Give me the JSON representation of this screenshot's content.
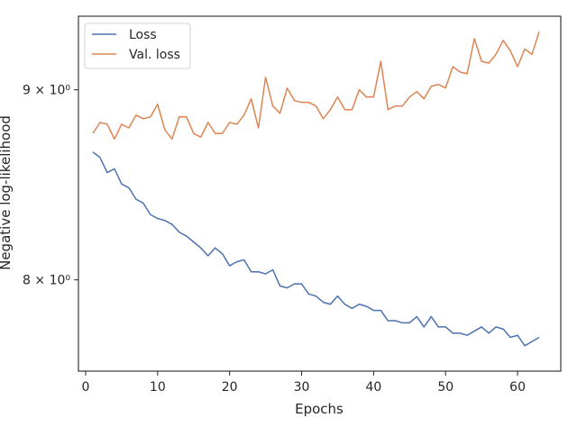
{
  "chart_data": {
    "type": "line",
    "xlabel": "Epochs",
    "ylabel": "Negative log-likelihood",
    "yscale": "log",
    "xlim": [
      -1,
      66
    ],
    "ylim": [
      7.56,
      9.42
    ],
    "xticks": [
      0,
      10,
      20,
      30,
      40,
      50,
      60
    ],
    "xtick_labels": [
      "0",
      "10",
      "20",
      "30",
      "40",
      "50",
      "60"
    ],
    "yticks": [
      8,
      9
    ],
    "ytick_labels": [
      "8 × 10⁰",
      "9 × 10⁰"
    ],
    "grid": false,
    "legend": {
      "position": "top-left"
    },
    "x": [
      1,
      2,
      3,
      4,
      5,
      6,
      7,
      8,
      9,
      10,
      11,
      12,
      13,
      14,
      15,
      16,
      17,
      18,
      19,
      20,
      21,
      22,
      23,
      24,
      25,
      26,
      27,
      28,
      29,
      30,
      31,
      32,
      33,
      34,
      35,
      36,
      37,
      38,
      39,
      40,
      41,
      42,
      43,
      44,
      45,
      46,
      47,
      48,
      49,
      50,
      51,
      52,
      53,
      54,
      55,
      56,
      57,
      58,
      59,
      60,
      61,
      62,
      63
    ],
    "series": [
      {
        "name": "Loss",
        "color": "#4c72b0",
        "values": [
          8.66,
          8.63,
          8.55,
          8.57,
          8.49,
          8.47,
          8.41,
          8.39,
          8.33,
          8.31,
          8.3,
          8.28,
          8.24,
          8.22,
          8.19,
          8.16,
          8.12,
          8.16,
          8.13,
          8.07,
          8.09,
          8.1,
          8.04,
          8.04,
          8.03,
          8.05,
          7.97,
          7.96,
          7.98,
          7.98,
          7.93,
          7.92,
          7.89,
          7.88,
          7.92,
          7.88,
          7.86,
          7.88,
          7.87,
          7.85,
          7.85,
          7.8,
          7.8,
          7.79,
          7.79,
          7.82,
          7.77,
          7.82,
          7.77,
          7.77,
          7.74,
          7.74,
          7.73,
          7.75,
          7.77,
          7.74,
          7.77,
          7.76,
          7.72,
          7.73,
          7.68,
          7.7,
          7.72
        ]
      },
      {
        "name": "Val. loss",
        "color": "#dd8452",
        "values": [
          8.76,
          8.82,
          8.81,
          8.73,
          8.81,
          8.79,
          8.86,
          8.84,
          8.85,
          8.92,
          8.78,
          8.73,
          8.85,
          8.85,
          8.76,
          8.74,
          8.82,
          8.76,
          8.76,
          8.82,
          8.81,
          8.86,
          8.95,
          8.79,
          9.07,
          8.91,
          8.87,
          9.01,
          8.94,
          8.93,
          8.93,
          8.91,
          8.84,
          8.89,
          8.96,
          8.89,
          8.89,
          9.0,
          8.96,
          8.96,
          9.16,
          8.89,
          8.91,
          8.91,
          8.96,
          8.99,
          8.95,
          9.02,
          9.03,
          9.01,
          9.13,
          9.1,
          9.09,
          9.29,
          9.16,
          9.15,
          9.2,
          9.28,
          9.22,
          9.13,
          9.23,
          9.2,
          9.33
        ]
      }
    ]
  }
}
